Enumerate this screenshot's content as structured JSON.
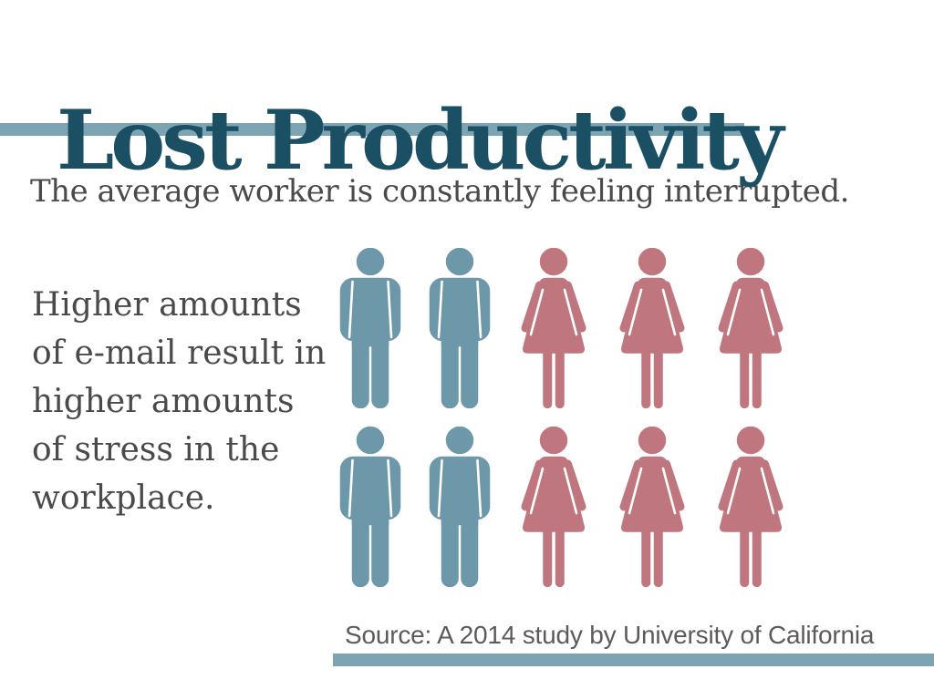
{
  "slide": {
    "title": "Lost Productivity",
    "intro": "The average worker is constantly feeling interrupted.",
    "paragraph_lines": [
      "Higher amounts",
      "of e-mail result in",
      "higher amounts",
      "of stress in the",
      "workplace."
    ],
    "source": "Source: A 2014 study by University of California"
  },
  "colors": {
    "title_text": "#1b4f63",
    "accent_bar": "#7ca4b3",
    "body_text": "#4a4a4a",
    "source_text": "#5a5b5d",
    "male_icon": "#6d98aa",
    "female_icon": "#c0767f"
  },
  "icons": {
    "male": "person-male-icon",
    "female": "person-female-icon"
  },
  "chart_data": {
    "type": "pictograph",
    "title": "Lost Productivity",
    "caption": "The average worker is constantly feeling interrupted.",
    "annotation": "Higher amounts of e-mail result in higher amounts of stress in the workplace.",
    "source": "Source: A 2014 study by University of California",
    "rows": [
      [
        "male",
        "male",
        "female",
        "female",
        "female"
      ],
      [
        "male",
        "male",
        "female",
        "female",
        "female"
      ]
    ],
    "counts": {
      "male": 4,
      "female": 6,
      "total": 10
    },
    "layout": "2 rows x 5 person icons, males blue, females rose"
  }
}
